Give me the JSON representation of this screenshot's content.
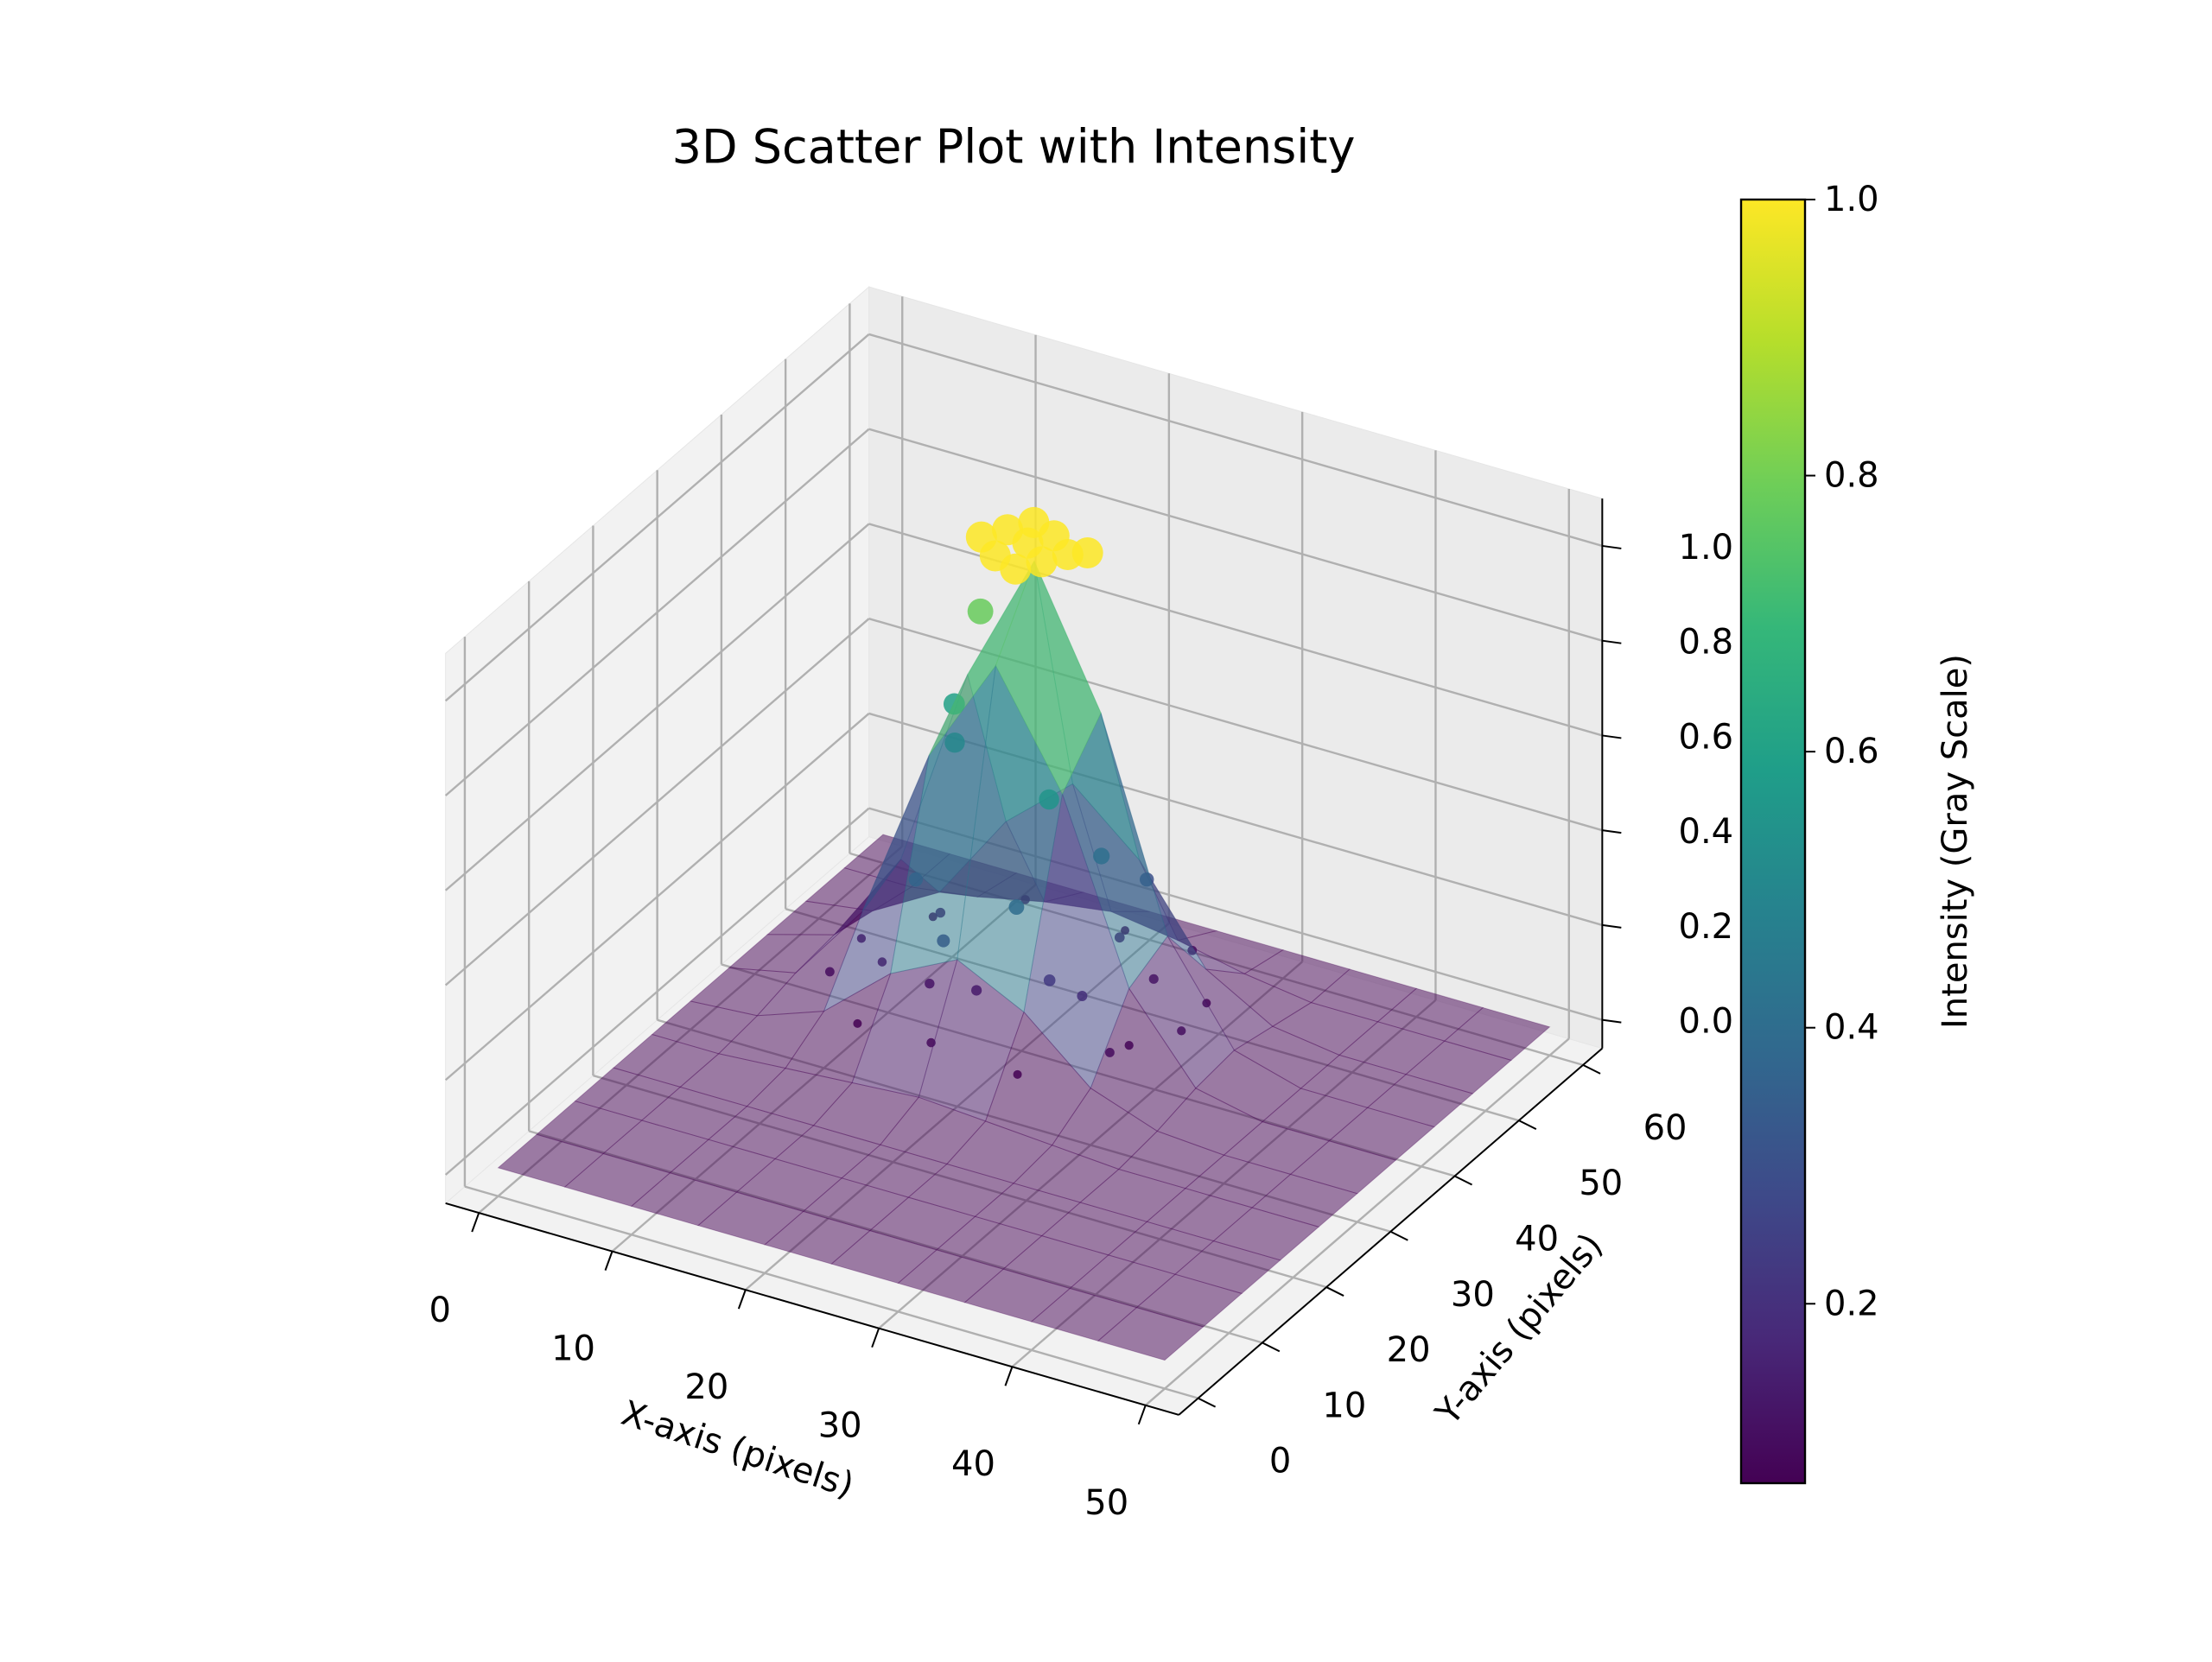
{
  "chart_data": {
    "type": "scatter3d",
    "title": "3D Scatter Plot with Intensity",
    "x_label": "X-axis (pixels)",
    "y_label": "Y-axis (pixels)",
    "colorbar_label": "Intensity (Gray Scale)",
    "xlim": [
      -2.5,
      52.5
    ],
    "ylim": [
      -3,
      63
    ],
    "zlim": [
      -0.06,
      1.1
    ],
    "xticks": [
      0,
      10,
      20,
      30,
      40,
      50
    ],
    "yticks": [
      0,
      10,
      20,
      30,
      40,
      50,
      60
    ],
    "zticks": [
      {
        "value": 0,
        "label": "0.0"
      },
      0.2,
      0.4,
      0.6,
      0.8,
      {
        "value": 1,
        "label": "1.0"
      }
    ],
    "clim": [
      0.07,
      1.0
    ],
    "cticks": [
      0.2,
      0.4,
      0.6,
      0.8,
      {
        "value": 1,
        "label": "1.0"
      }
    ],
    "colormap": "viridis",
    "grid": true,
    "surface": {
      "x": [
        0,
        5,
        10,
        15,
        20,
        25,
        30,
        35,
        40,
        45,
        50
      ],
      "y": [
        0,
        6,
        12,
        18,
        24,
        30,
        36,
        42,
        48,
        54,
        60
      ],
      "z": [
        [
          0,
          0,
          0,
          0,
          0,
          0,
          0,
          0,
          0,
          0,
          0
        ],
        [
          0,
          0,
          0,
          0,
          0,
          0,
          0,
          0,
          0,
          0,
          0
        ],
        [
          0,
          0,
          0,
          0,
          0,
          0,
          0,
          0,
          0,
          0,
          0
        ],
        [
          0,
          0,
          0,
          0,
          0,
          0,
          0,
          0,
          0,
          0,
          0
        ],
        [
          0,
          0,
          0.01,
          0.02,
          0.03,
          0.02,
          0.01,
          0,
          0,
          0,
          0
        ],
        [
          0,
          0.01,
          0.06,
          0.18,
          0.25,
          0.18,
          0.06,
          0.01,
          0,
          0,
          0
        ],
        [
          0,
          0.03,
          0.2,
          0.57,
          0.8,
          0.57,
          0.2,
          0.03,
          0,
          0,
          0
        ],
        [
          0,
          0.04,
          0.24,
          0.67,
          0.95,
          0.67,
          0.24,
          0.04,
          0,
          0,
          0
        ],
        [
          0,
          0.02,
          0.1,
          0.29,
          0.41,
          0.29,
          0.1,
          0.02,
          0,
          0,
          0
        ],
        [
          0,
          0,
          0.02,
          0.05,
          0.07,
          0.05,
          0.02,
          0,
          0,
          0,
          0
        ],
        [
          0,
          0,
          0,
          0,
          0,
          0,
          0,
          0,
          0,
          0,
          0
        ]
      ]
    },
    "points": {
      "x": [
        17,
        18,
        19,
        20,
        21,
        22,
        23,
        19,
        21,
        24,
        15,
        14,
        15,
        24,
        26,
        23,
        14,
        18,
        27,
        25,
        32,
        31,
        28,
        22,
        15,
        10,
        8,
        9,
        13,
        19,
        25,
        30,
        12,
        28,
        24,
        16,
        20,
        26,
        30,
        11
      ],
      "y": [
        40,
        42,
        38,
        41,
        43,
        39,
        41,
        44,
        37,
        42,
        44,
        42,
        40,
        36,
        40,
        33,
        36,
        32,
        45,
        34,
        40,
        46,
        50,
        52,
        51,
        47,
        40,
        33,
        29,
        28,
        29,
        33,
        44,
        44,
        47,
        34,
        33,
        37,
        36,
        37
      ],
      "z": [
        1,
        1,
        1,
        1,
        1,
        1,
        1,
        1,
        1,
        1,
        0.78,
        0.6,
        0.55,
        0.55,
        0.4,
        0.35,
        0.3,
        0.25,
        0.3,
        0.2,
        0.08,
        0.06,
        0.1,
        0.07,
        0.09,
        0.06,
        0.08,
        0.1,
        0.07,
        0.09,
        0.06,
        0.1,
        0.12,
        0.11,
        0.13,
        0.12,
        0.15,
        0.14,
        0.08,
        0.09
      ]
    }
  }
}
